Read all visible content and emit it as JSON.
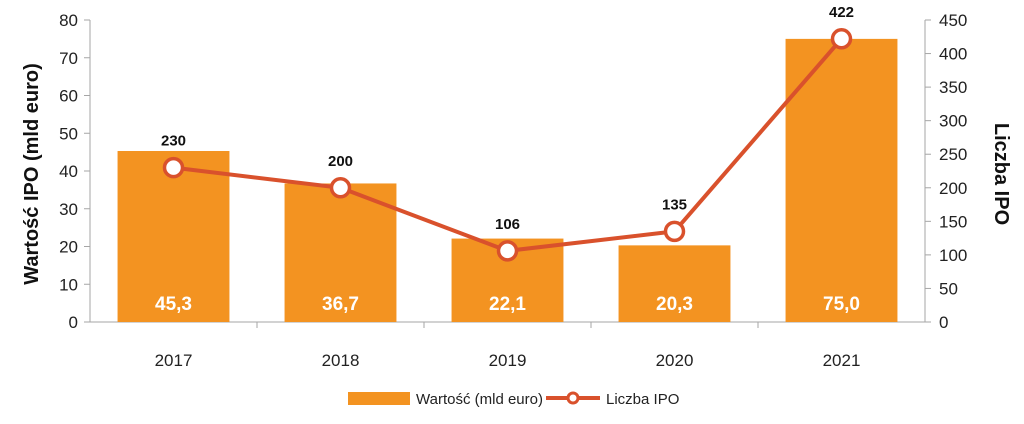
{
  "chart_data": {
    "type": "bar",
    "categories": [
      "2017",
      "2018",
      "2019",
      "2020",
      "2021"
    ],
    "series": [
      {
        "name": "Wartość (mld euro)",
        "type": "bar",
        "axis": "left",
        "values": [
          45.3,
          36.7,
          22.1,
          20.3,
          75.0
        ],
        "labels": [
          "45,3",
          "36,7",
          "22,1",
          "20,3",
          "75,0"
        ],
        "color": "#F39321"
      },
      {
        "name": "Liczba IPO",
        "type": "line",
        "axis": "right",
        "values": [
          230,
          200,
          106,
          135,
          422
        ],
        "labels": [
          "230",
          "200",
          "106",
          "135",
          "422"
        ],
        "color": "#D9512C"
      }
    ],
    "ylabel": "Wartość IPO (mld euro)",
    "y2label": "Liczba IPO",
    "ylim": [
      0,
      80
    ],
    "y2lim": [
      0,
      450
    ],
    "yticks": [
      "0",
      "10",
      "20",
      "30",
      "40",
      "50",
      "60",
      "70",
      "80"
    ],
    "y2ticks": [
      "0",
      "50",
      "100",
      "150",
      "200",
      "250",
      "300",
      "350",
      "400",
      "450"
    ],
    "grid": false,
    "legend_position": "bottom"
  }
}
